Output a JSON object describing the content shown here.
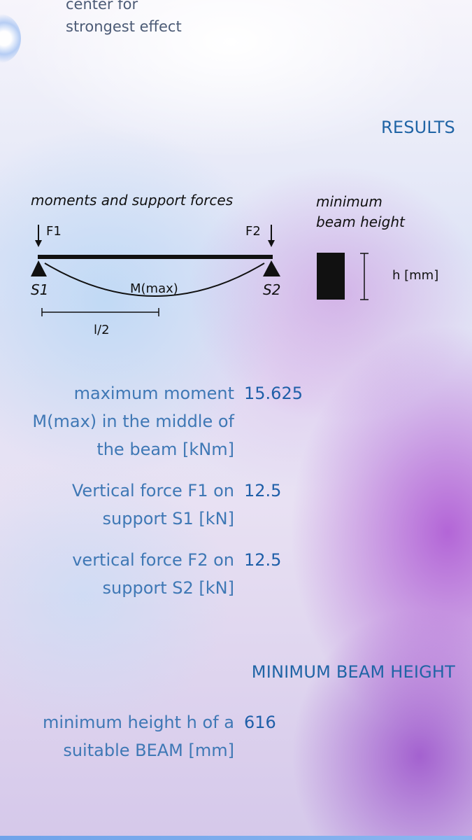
{
  "partial_text": {
    "line1": "center for",
    "line2": "strongest effect"
  },
  "results": {
    "header": "RESULTS",
    "diagram": {
      "caption_moments": "moments and support forces",
      "caption_min_height_line1": "minimum",
      "caption_min_height_line2": "beam height",
      "label_f1": "F1",
      "label_f2": "F2",
      "label_s1": "S1",
      "label_s2": "S2",
      "label_mmax": "M(max)",
      "label_half_length": "l/2",
      "label_h": "h [mm]"
    },
    "rows": [
      {
        "label_lines": [
          "maximum moment",
          "M(max) in the middle of",
          "the beam [kNm]"
        ],
        "value": "15.625"
      },
      {
        "label_lines": [
          "Vertical force F1 on",
          "support S1 [kN]"
        ],
        "value": "12.5"
      },
      {
        "label_lines": [
          "vertical force F2 on",
          "support S2 [kN]"
        ],
        "value": "12.5"
      }
    ]
  },
  "min_beam_height": {
    "header": "MINIMUM BEAM HEIGHT",
    "row": {
      "label_lines": [
        "minimum height h of a",
        "suitable BEAM [mm]"
      ],
      "value": "616"
    }
  }
}
